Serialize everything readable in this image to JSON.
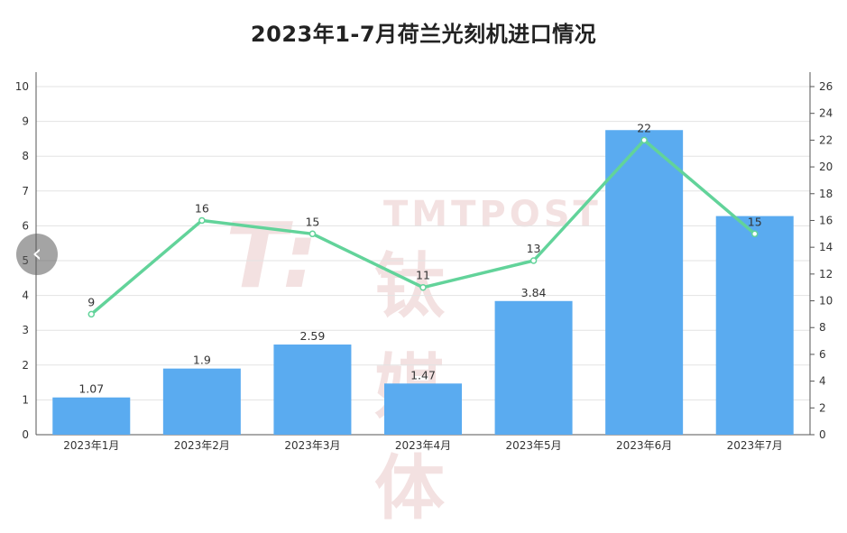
{
  "chart_data": {
    "type": "bar+line",
    "title": "2023年1-7月荷兰光刻机进口情况",
    "categories": [
      "2023年1月",
      "2023年2月",
      "2023年3月",
      "2023年4月",
      "2023年5月",
      "2023年6月",
      "2023年7月"
    ],
    "series": [
      {
        "type": "bar",
        "axis": "left",
        "color": "#5aabf0",
        "values": [
          1.07,
          1.9,
          2.59,
          1.47,
          3.84,
          8.75,
          6.28
        ],
        "labels": [
          "1.07",
          "1.9",
          "2.59",
          "1.47",
          "3.84",
          "",
          ""
        ]
      },
      {
        "type": "line",
        "axis": "right",
        "color": "#62d39a",
        "values": [
          9,
          16,
          15,
          11,
          13,
          22,
          15
        ],
        "labels": [
          "9",
          "16",
          "15",
          "11",
          "13",
          "22",
          "15"
        ]
      }
    ],
    "ylim_left": [
      0,
      10
    ],
    "yticks_left": [
      0,
      1,
      2,
      3,
      4,
      5,
      6,
      7,
      8,
      9,
      10
    ],
    "ylim_right": [
      0,
      26
    ],
    "yticks_right": [
      0,
      2,
      4,
      6,
      8,
      10,
      12,
      14,
      16,
      18,
      20,
      22,
      24,
      26
    ],
    "grid": true
  },
  "watermark": {
    "latin": "TMTPOST",
    "cn": "钛媒体"
  },
  "nav": {
    "back_glyph": "‹"
  }
}
